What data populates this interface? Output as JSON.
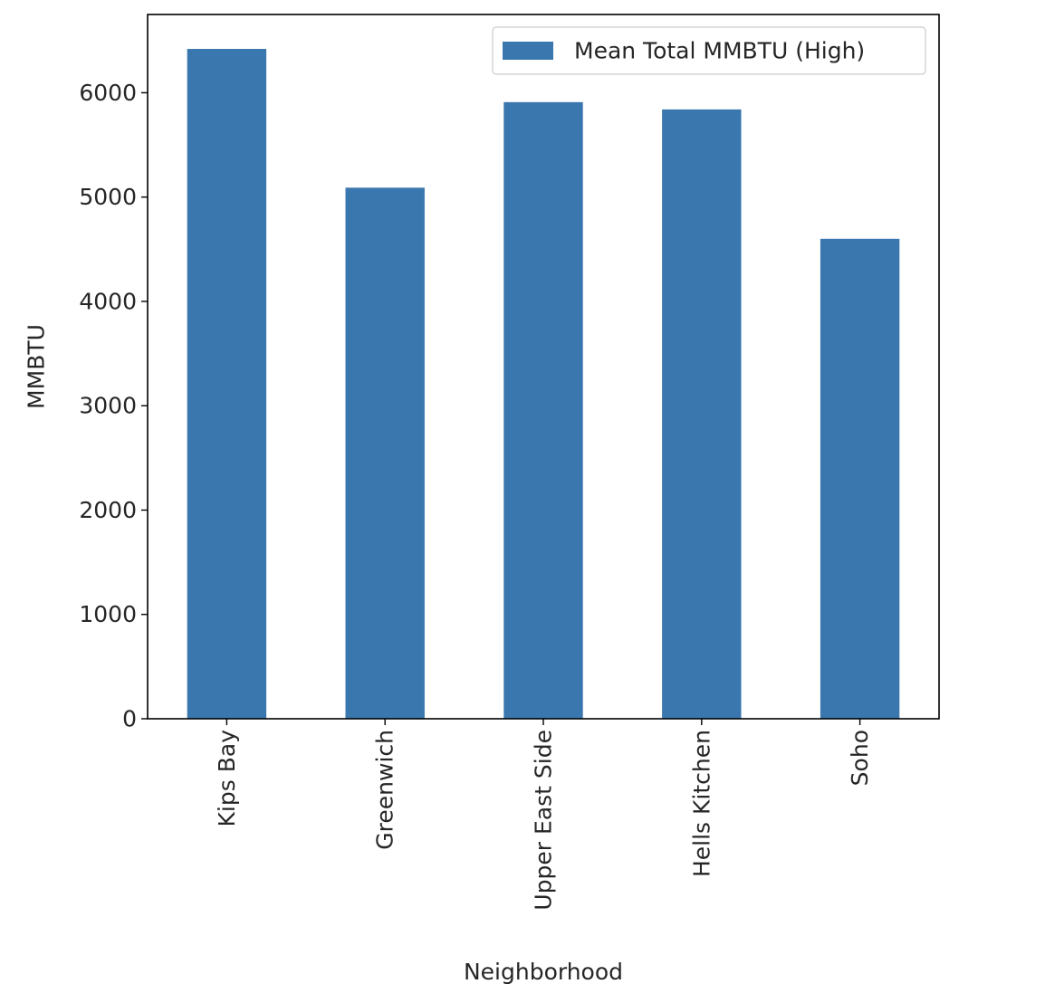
{
  "chart_data": {
    "type": "bar",
    "categories": [
      "Kips Bay",
      "Greenwich",
      "Upper East Side",
      "Hells Kitchen",
      "Soho"
    ],
    "series": [
      {
        "name": "Mean Total MMBTU (High)",
        "values": [
          6420,
          5090,
          5910,
          5840,
          4600
        ],
        "color": "#3a77ae"
      }
    ],
    "title": "",
    "xlabel": "Neighborhood",
    "ylabel": "MMBTU",
    "ylim": [
      0,
      6750
    ],
    "yticks": [
      0,
      1000,
      2000,
      3000,
      4000,
      5000,
      6000
    ],
    "ytick_labels": [
      "0",
      "1000",
      "2000",
      "3000",
      "4000",
      "5000",
      "6000"
    ],
    "grid": false,
    "legend_position": "top-right"
  }
}
